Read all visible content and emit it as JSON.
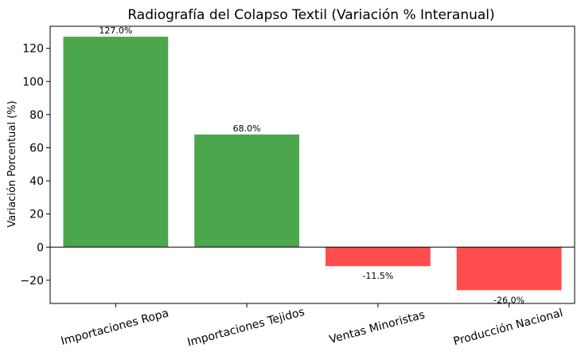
{
  "chart_data": {
    "type": "bar",
    "title": "Radiografía del Colapso Textil (Variación % Interanual)",
    "xlabel": "",
    "ylabel": "Variación Porcentual (%)",
    "categories": [
      "Importaciones Ropa",
      "Importaciones Tejidos",
      "Ventas Minoristas",
      "Producción Nacional"
    ],
    "values": [
      127.0,
      68.0,
      -11.5,
      -26.0
    ],
    "data_labels": [
      "127.0%",
      "68.0%",
      "-11.5%",
      "-26.0%"
    ],
    "colors": [
      "#4ca64c",
      "#4ca64c",
      "#ff4d4d",
      "#ff4d4d"
    ],
    "yticks": [
      -20,
      0,
      20,
      40,
      60,
      80,
      100,
      120
    ],
    "ytick_labels": [
      "−20",
      "0",
      "20",
      "40",
      "60",
      "80",
      "100",
      "120"
    ],
    "ylim": [
      -34,
      133.3
    ],
    "zero_line": true,
    "grid": false,
    "legend": "none"
  }
}
